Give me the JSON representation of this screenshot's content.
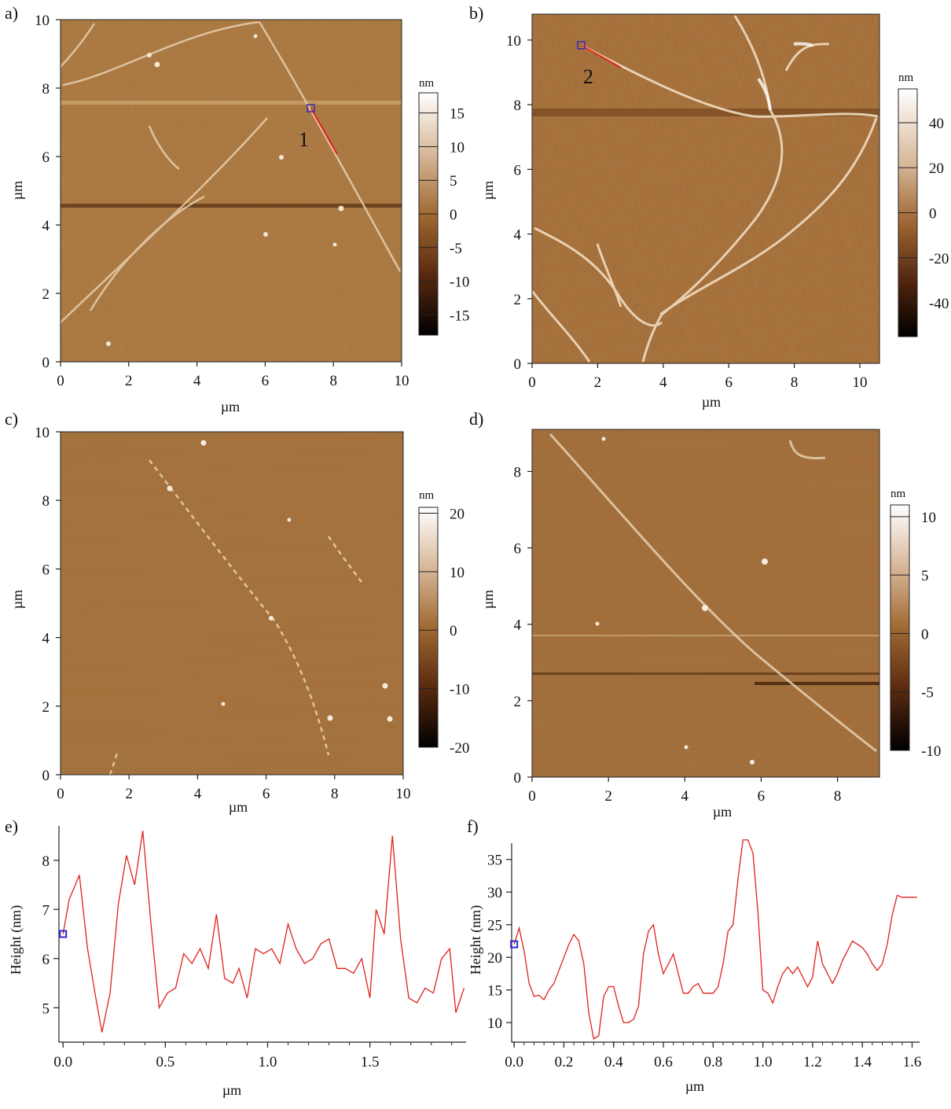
{
  "chart_data": [
    {
      "id": "a",
      "type": "heatmap",
      "panel_label": "a)",
      "image_kind": "afm",
      "xlabel": "µm",
      "ylabel": "µm",
      "xticks": [
        "0",
        "2",
        "4",
        "6",
        "8",
        "10"
      ],
      "yticks": [
        "0",
        "2",
        "4",
        "6",
        "8",
        "10"
      ],
      "xlim": [
        0,
        10
      ],
      "ylim": [
        0,
        10
      ],
      "colorbar": {
        "unit": "nm",
        "ticks": [
          "15",
          "10",
          "5",
          "0",
          "-5",
          "-10",
          "-15"
        ],
        "range": [
          -18,
          18
        ]
      },
      "profile_marker": {
        "label": "1",
        "from": [
          7.4,
          7.4
        ],
        "to": [
          8.1,
          6.0
        ]
      },
      "colors": {
        "surface": "#a9743c",
        "line": "#e8d2b0",
        "marker": "#3a2fb0",
        "profile": "#e0201c"
      }
    },
    {
      "id": "b",
      "type": "heatmap",
      "panel_label": "b)",
      "image_kind": "afm",
      "xlabel": "µm",
      "ylabel": "µm",
      "xticks": [
        "0",
        "2",
        "4",
        "6",
        "8",
        "10"
      ],
      "yticks": [
        "0",
        "2",
        "4",
        "6",
        "8",
        "10"
      ],
      "xlim": [
        0,
        10.6
      ],
      "ylim": [
        0,
        10.8
      ],
      "colorbar": {
        "unit": "nm",
        "ticks": [
          "40",
          "20",
          "0",
          "-20",
          "-40"
        ],
        "range": [
          -55,
          55
        ]
      },
      "profile_marker": {
        "label": "2",
        "from": [
          1.6,
          9.8
        ],
        "to": [
          2.7,
          9.1
        ]
      },
      "colors": {
        "surface": "#a26a35",
        "line": "#f0dcc0",
        "marker": "#3a2fb0",
        "profile": "#e0201c"
      }
    },
    {
      "id": "c",
      "type": "heatmap",
      "panel_label": "c)",
      "image_kind": "afm",
      "xlabel": "µm",
      "ylabel": "µm",
      "xticks": [
        "0",
        "2",
        "4",
        "6",
        "8",
        "10"
      ],
      "yticks": [
        "0",
        "2",
        "4",
        "6",
        "8",
        "10"
      ],
      "xlim": [
        0,
        10
      ],
      "ylim": [
        0,
        10
      ],
      "colorbar": {
        "unit": "nm",
        "ticks": [
          "20",
          "10",
          "0",
          "-10",
          "-20"
        ],
        "range": [
          -20,
          21
        ]
      },
      "colors": {
        "surface": "#a56f39",
        "line": "#e9d3b2"
      }
    },
    {
      "id": "d",
      "type": "heatmap",
      "panel_label": "d)",
      "image_kind": "afm",
      "xlabel": "µm",
      "ylabel": "µm",
      "xticks": [
        "0",
        "2",
        "4",
        "6",
        "8"
      ],
      "yticks": [
        "0",
        "2",
        "4",
        "6",
        "8"
      ],
      "xlim": [
        0,
        9.1
      ],
      "ylim": [
        0,
        9.1
      ],
      "colorbar": {
        "unit": "nm",
        "ticks": [
          "10",
          "5",
          "0",
          "-5",
          "-10"
        ],
        "range": [
          -10,
          11
        ]
      },
      "colors": {
        "surface": "#a26b36",
        "line": "#e6cfae"
      }
    },
    {
      "id": "e",
      "type": "line",
      "panel_label": "e)",
      "xlabel": "µm",
      "ylabel": "Height (nm)",
      "xlim": [
        -0.02,
        1.97
      ],
      "ylim": [
        4.3,
        8.7
      ],
      "xticks": [
        0.0,
        0.5,
        1.0,
        1.5
      ],
      "xticklabels": [
        "0.0",
        "0.5",
        "1.0",
        "1.5"
      ],
      "yticks": [
        5,
        6,
        7,
        8
      ],
      "yticklabels": [
        "5",
        "6",
        "7",
        "8"
      ],
      "series": [
        {
          "color": "#e0201c",
          "x": [
            0.0,
            0.03,
            0.08,
            0.12,
            0.16,
            0.19,
            0.23,
            0.27,
            0.31,
            0.35,
            0.39,
            0.43,
            0.47,
            0.51,
            0.55,
            0.59,
            0.63,
            0.67,
            0.71,
            0.75,
            0.79,
            0.83,
            0.86,
            0.9,
            0.94,
            0.98,
            1.02,
            1.06,
            1.1,
            1.14,
            1.18,
            1.22,
            1.26,
            1.3,
            1.34,
            1.38,
            1.42,
            1.46,
            1.5,
            1.53,
            1.57,
            1.61,
            1.65,
            1.69,
            1.73,
            1.77,
            1.81,
            1.85,
            1.89,
            1.92,
            1.96
          ],
          "y": [
            6.5,
            7.2,
            7.7,
            6.2,
            5.2,
            4.5,
            5.3,
            7.1,
            8.1,
            7.5,
            8.6,
            6.7,
            5.0,
            5.3,
            5.4,
            6.1,
            5.9,
            6.2,
            5.8,
            6.9,
            5.6,
            5.5,
            5.8,
            5.2,
            6.2,
            6.1,
            6.2,
            5.9,
            6.7,
            6.2,
            5.9,
            6.0,
            6.3,
            6.4,
            5.8,
            5.8,
            5.7,
            6.0,
            5.2,
            7.0,
            6.5,
            8.5,
            6.4,
            5.2,
            5.1,
            5.4,
            5.3,
            6.0,
            6.2,
            4.9,
            5.4
          ]
        }
      ],
      "start_marker": {
        "x": 0.0,
        "y": 6.5,
        "color": "#2b2bd8"
      }
    },
    {
      "id": "f",
      "type": "line",
      "panel_label": "f)",
      "xlabel": "µm",
      "ylabel": "Height (nm)",
      "xlim": [
        -0.01,
        1.63
      ],
      "ylim": [
        7,
        37.5
      ],
      "xticks": [
        0.0,
        0.2,
        0.4,
        0.6,
        0.8,
        1.0,
        1.2,
        1.4,
        1.6
      ],
      "xticklabels": [
        "0.0",
        "0.2",
        "0.4",
        "0.6",
        "0.8",
        "1.0",
        "1.2",
        "1.4",
        "1.6"
      ],
      "yticks": [
        10,
        15,
        20,
        25,
        30,
        35
      ],
      "yticklabels": [
        "10",
        "15",
        "20",
        "25",
        "30",
        "35"
      ],
      "series": [
        {
          "color": "#e0201c",
          "x": [
            0.0,
            0.02,
            0.04,
            0.06,
            0.08,
            0.1,
            0.12,
            0.14,
            0.16,
            0.18,
            0.2,
            0.22,
            0.24,
            0.26,
            0.28,
            0.3,
            0.32,
            0.34,
            0.36,
            0.38,
            0.4,
            0.42,
            0.44,
            0.46,
            0.48,
            0.5,
            0.52,
            0.54,
            0.56,
            0.58,
            0.6,
            0.62,
            0.64,
            0.66,
            0.68,
            0.7,
            0.72,
            0.74,
            0.76,
            0.78,
            0.8,
            0.82,
            0.84,
            0.86,
            0.88,
            0.9,
            0.92,
            0.94,
            0.96,
            0.98,
            1.0,
            1.02,
            1.04,
            1.06,
            1.08,
            1.1,
            1.12,
            1.14,
            1.16,
            1.18,
            1.2,
            1.22,
            1.24,
            1.26,
            1.28,
            1.3,
            1.32,
            1.34,
            1.36,
            1.38,
            1.4,
            1.42,
            1.44,
            1.46,
            1.48,
            1.5,
            1.52,
            1.54,
            1.56,
            1.58,
            1.6,
            1.62
          ],
          "y": [
            22,
            24.5,
            21,
            16,
            14,
            14.2,
            13.5,
            15,
            16,
            18,
            20,
            22,
            23.5,
            22.5,
            19,
            11.5,
            7.5,
            8,
            14,
            15.5,
            15.5,
            12.5,
            10,
            10,
            10.5,
            12.5,
            20.5,
            24,
            25,
            20.5,
            17.5,
            19,
            20.5,
            17.5,
            14.5,
            14.5,
            15.5,
            16,
            14.5,
            14.5,
            14.5,
            15.5,
            19,
            24,
            25,
            32,
            38,
            38,
            36,
            27,
            15,
            14.5,
            13,
            15.5,
            17.5,
            18.5,
            17.5,
            18.5,
            17,
            15.5,
            17,
            22.5,
            19,
            17.5,
            16,
            17.5,
            19.5,
            21,
            22.5,
            22,
            21.5,
            20.5,
            19,
            18,
            19,
            22,
            26.5,
            29.5,
            29.2,
            29.2,
            29.2,
            29.2
          ]
        }
      ],
      "start_marker": {
        "x": 0.0,
        "y": 22,
        "color": "#2b2bd8"
      }
    }
  ]
}
